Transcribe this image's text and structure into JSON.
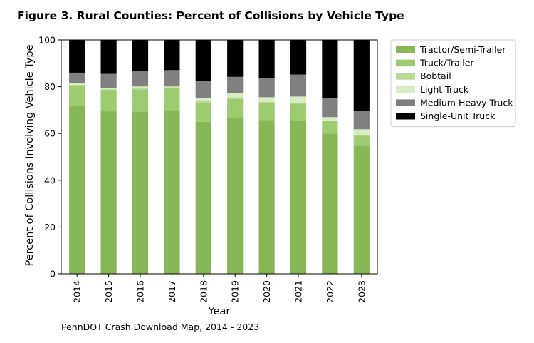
{
  "figure_title": "Figure 3. Rural Counties: Percent of Collisions by Vehicle Type",
  "source_note": "PennDOT Crash Download Map, 2014 - 2023",
  "chart_data": {
    "type": "bar",
    "stacked": true,
    "title": "Figure 3. Rural Counties: Percent of Collisions by Vehicle Type",
    "xlabel": "Year",
    "ylabel": "Percent of Collisions Involving Vehicle Type",
    "ylim": [
      0,
      100
    ],
    "yticks": [
      0,
      20,
      40,
      60,
      80,
      100
    ],
    "categories": [
      "2014",
      "2015",
      "2016",
      "2017",
      "2018",
      "2019",
      "2020",
      "2021",
      "2022",
      "2023"
    ],
    "legend_position": "outside-top-right",
    "series": [
      {
        "name": "Tractor/Semi-Trailer",
        "color": "#86b856",
        "values": [
          71.7,
          69.5,
          69.4,
          70.0,
          65.0,
          67.0,
          65.8,
          65.5,
          60.0,
          54.7
        ]
      },
      {
        "name": "Truck/Trailer",
        "color": "#9ccc6f",
        "values": [
          8.5,
          9.0,
          9.5,
          9.5,
          8.0,
          7.8,
          7.2,
          7.2,
          5.3,
          4.3
        ]
      },
      {
        "name": "Bobtail",
        "color": "#b8dc93",
        "values": [
          0.6,
          0.5,
          0.6,
          0.3,
          0.8,
          0.7,
          0.5,
          0.3,
          0.3,
          0.3
        ]
      },
      {
        "name": "Light Truck",
        "color": "#d9edc4",
        "values": [
          0.6,
          0.5,
          0.6,
          0.3,
          1.2,
          1.7,
          2.0,
          2.8,
          1.4,
          2.5
        ]
      },
      {
        "name": "Medium Heavy Truck",
        "color": "#808080",
        "values": [
          4.6,
          6.0,
          6.5,
          7.0,
          7.5,
          7.0,
          8.3,
          9.4,
          8.0,
          8.0
        ]
      },
      {
        "name": "Single-Unit Truck",
        "color": "#000000",
        "values": [
          14.0,
          14.5,
          13.4,
          12.9,
          17.5,
          15.8,
          16.2,
          14.8,
          25.0,
          30.2
        ]
      }
    ]
  }
}
